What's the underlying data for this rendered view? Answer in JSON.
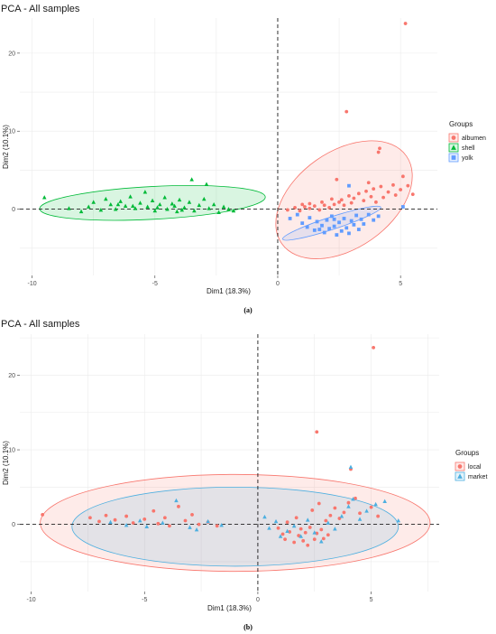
{
  "chart_data": [
    {
      "type": "scatter",
      "title": "PCA - All samples",
      "caption": "(a)",
      "xlabel": "Dim1 (18.3%)",
      "ylabel": "Dim2 (10.1%)",
      "xlim": [
        -10.5,
        6.5
      ],
      "ylim": [
        -8.5,
        24.5
      ],
      "x_ticks": [
        -10,
        -5,
        0,
        5
      ],
      "y_ticks": [
        0,
        10,
        20
      ],
      "grid": true,
      "legend": {
        "title": "Groups",
        "position": "right"
      },
      "series": [
        {
          "name": "albumen",
          "color": "#F8766D",
          "marker": "circle",
          "ellipse": {
            "center": [
              2.7,
              1.2
            ],
            "rx": 3.1,
            "ry": 6.2,
            "angle_deg": -35
          },
          "points": [
            [
              0.4,
              -0.1
            ],
            [
              0.7,
              0.2
            ],
            [
              0.9,
              -0.2
            ],
            [
              1.1,
              0.3
            ],
            [
              1.3,
              0.1
            ],
            [
              1.5,
              0.4
            ],
            [
              1.7,
              -0.1
            ],
            [
              1.9,
              0.5
            ],
            [
              2.1,
              0.2
            ],
            [
              2.3,
              0.6
            ],
            [
              2.5,
              0.9
            ],
            [
              2.6,
              1.2
            ],
            [
              2.7,
              0.5
            ],
            [
              2.9,
              1.7
            ],
            [
              3.0,
              0.8
            ],
            [
              3.1,
              1.4
            ],
            [
              3.3,
              2.0
            ],
            [
              3.5,
              1.1
            ],
            [
              3.6,
              2.3
            ],
            [
              3.8,
              1.6
            ],
            [
              3.9,
              2.6
            ],
            [
              4.0,
              0.9
            ],
            [
              4.2,
              2.9
            ],
            [
              4.3,
              1.5
            ],
            [
              4.5,
              2.2
            ],
            [
              4.7,
              3.1
            ],
            [
              4.8,
              1.8
            ],
            [
              5.0,
              2.5
            ],
            [
              5.1,
              4.2
            ],
            [
              5.3,
              3.0
            ],
            [
              5.5,
              1.9
            ],
            [
              2.2,
              1.3
            ],
            [
              1.8,
              0.9
            ],
            [
              1.3,
              0.7
            ],
            [
              3.7,
              3.4
            ],
            [
              4.1,
              7.3
            ],
            [
              4.15,
              7.8
            ],
            [
              2.8,
              12.5
            ],
            [
              5.2,
              23.8
            ],
            [
              2.4,
              3.8
            ],
            [
              1.0,
              0.6
            ]
          ]
        },
        {
          "name": "shell",
          "color": "#00BA38",
          "marker": "triangle",
          "ellipse": {
            "center": [
              -5.1,
              0.8
            ],
            "rx": 4.6,
            "ry": 2.1,
            "angle_deg": -3
          },
          "points": [
            [
              -9.5,
              1.5
            ],
            [
              -8.5,
              0.1
            ],
            [
              -8.0,
              -0.3
            ],
            [
              -7.7,
              0.3
            ],
            [
              -7.5,
              0.9
            ],
            [
              -7.2,
              -0.1
            ],
            [
              -7.0,
              1.3
            ],
            [
              -6.8,
              0.6
            ],
            [
              -6.6,
              0.0
            ],
            [
              -6.4,
              1.0
            ],
            [
              -6.2,
              0.4
            ],
            [
              -6.0,
              1.6
            ],
            [
              -5.8,
              0.1
            ],
            [
              -5.6,
              0.8
            ],
            [
              -5.4,
              2.2
            ],
            [
              -5.3,
              0.3
            ],
            [
              -5.1,
              1.1
            ],
            [
              -5.0,
              -0.2
            ],
            [
              -4.8,
              0.6
            ],
            [
              -4.6,
              1.5
            ],
            [
              -4.5,
              0.0
            ],
            [
              -4.3,
              0.7
            ],
            [
              -4.1,
              -0.3
            ],
            [
              -4.0,
              1.2
            ],
            [
              -3.8,
              0.2
            ],
            [
              -3.6,
              0.9
            ],
            [
              -3.5,
              3.8
            ],
            [
              -3.4,
              -0.2
            ],
            [
              -3.2,
              0.5
            ],
            [
              -3.0,
              1.3
            ],
            [
              -2.9,
              3.2
            ],
            [
              -2.8,
              0.1
            ],
            [
              -2.6,
              0.6
            ],
            [
              -2.4,
              -0.4
            ],
            [
              -2.2,
              0.3
            ],
            [
              -2.0,
              0.0
            ],
            [
              -1.8,
              -0.2
            ],
            [
              -5.9,
              0.4
            ],
            [
              -4.9,
              0.2
            ],
            [
              -4.2,
              0.4
            ],
            [
              -3.9,
              -0.1
            ],
            [
              -6.5,
              0.6
            ]
          ]
        },
        {
          "name": "yolk",
          "color": "#619CFF",
          "marker": "square",
          "ellipse": {
            "center": [
              2.2,
              -1.8
            ],
            "rx": 2.1,
            "ry": 0.8,
            "angle_deg": -18
          },
          "points": [
            [
              0.5,
              -1.2
            ],
            [
              0.8,
              -0.7
            ],
            [
              1.0,
              -1.8
            ],
            [
              1.2,
              -2.3
            ],
            [
              1.3,
              -1.1
            ],
            [
              1.5,
              -2.7
            ],
            [
              1.6,
              -1.6
            ],
            [
              1.8,
              -2.1
            ],
            [
              1.9,
              -3.0
            ],
            [
              2.0,
              -1.4
            ],
            [
              2.1,
              -2.5
            ],
            [
              2.2,
              -0.9
            ],
            [
              2.3,
              -2.2
            ],
            [
              2.4,
              -3.3
            ],
            [
              2.5,
              -1.7
            ],
            [
              2.6,
              -2.8
            ],
            [
              2.7,
              -1.2
            ],
            [
              2.8,
              -2.4
            ],
            [
              2.9,
              -3.1
            ],
            [
              3.0,
              -1.5
            ],
            [
              3.1,
              -2.0
            ],
            [
              3.2,
              -0.8
            ],
            [
              3.3,
              -2.6
            ],
            [
              3.4,
              -1.3
            ],
            [
              3.5,
              -1.9
            ],
            [
              3.7,
              -0.7
            ],
            [
              3.9,
              -1.4
            ],
            [
              4.1,
              -0.9
            ],
            [
              2.9,
              3.0
            ],
            [
              5.1,
              0.3
            ],
            [
              1.7,
              -2.6
            ],
            [
              2.3,
              -1.3
            ]
          ]
        }
      ]
    },
    {
      "type": "scatter",
      "title": "PCA - All samples",
      "caption": "(b)",
      "xlabel": "Dim1 (18.3%)",
      "ylabel": "Dim2 (10.1%)",
      "xlim": [
        -10.5,
        8.0
      ],
      "ylim": [
        -9.0,
        25.5
      ],
      "x_ticks": [
        -10,
        -5,
        0,
        5
      ],
      "y_ticks": [
        0,
        10,
        20
      ],
      "grid": true,
      "legend": {
        "title": "Groups",
        "position": "right"
      },
      "series": [
        {
          "name": "local",
          "color": "#F8766D",
          "marker": "circle",
          "ellipse": {
            "center": [
              -1.0,
              0.2
            ],
            "rx": 8.6,
            "ry": 6.5,
            "angle_deg": 0
          },
          "points": [
            [
              -9.5,
              1.3
            ],
            [
              -7.4,
              0.9
            ],
            [
              -7.0,
              0.4
            ],
            [
              -6.7,
              1.2
            ],
            [
              -6.3,
              0.6
            ],
            [
              -5.8,
              1.1
            ],
            [
              -5.5,
              0.2
            ],
            [
              -5.0,
              0.7
            ],
            [
              -4.6,
              1.8
            ],
            [
              -4.4,
              0.1
            ],
            [
              -4.1,
              0.9
            ],
            [
              -3.9,
              -0.2
            ],
            [
              -3.5,
              2.4
            ],
            [
              -3.2,
              0.5
            ],
            [
              -2.9,
              1.3
            ],
            [
              -2.6,
              0.0
            ],
            [
              -2.2,
              0.3
            ],
            [
              -1.8,
              -0.2
            ],
            [
              0.9,
              -0.5
            ],
            [
              1.1,
              -1.3
            ],
            [
              1.2,
              -2.0
            ],
            [
              1.4,
              -1.0
            ],
            [
              1.6,
              -2.4
            ],
            [
              1.8,
              -1.5
            ],
            [
              1.9,
              -0.6
            ],
            [
              2.0,
              -2.2
            ],
            [
              2.1,
              -1.1
            ],
            [
              2.2,
              -2.8
            ],
            [
              2.3,
              -0.4
            ],
            [
              2.4,
              1.9
            ],
            [
              2.5,
              -2.0
            ],
            [
              2.6,
              -1.2
            ],
            [
              2.7,
              2.8
            ],
            [
              2.8,
              -0.7
            ],
            [
              2.9,
              -1.9
            ],
            [
              3.0,
              0.5
            ],
            [
              3.1,
              -1.4
            ],
            [
              3.2,
              1.2
            ],
            [
              3.4,
              2.2
            ],
            [
              3.6,
              0.8
            ],
            [
              3.8,
              1.6
            ],
            [
              4.0,
              2.9
            ],
            [
              4.1,
              7.4
            ],
            [
              4.3,
              3.5
            ],
            [
              4.5,
              1.5
            ],
            [
              5.0,
              2.3
            ],
            [
              5.3,
              1.1
            ],
            [
              2.6,
              12.4
            ],
            [
              5.1,
              23.7
            ],
            [
              1.3,
              0.3
            ],
            [
              1.7,
              0.9
            ]
          ]
        },
        {
          "name": "market",
          "color": "#4DAFE0",
          "marker": "triangle",
          "ellipse": {
            "center": [
              -1.0,
              -0.3
            ],
            "rx": 7.2,
            "ry": 5.3,
            "angle_deg": 0
          },
          "points": [
            [
              -6.5,
              0.3
            ],
            [
              -5.8,
              -0.1
            ],
            [
              -5.2,
              0.5
            ],
            [
              -4.9,
              -0.3
            ],
            [
              -4.2,
              0.2
            ],
            [
              -3.6,
              3.2
            ],
            [
              -3.0,
              -0.4
            ],
            [
              -2.7,
              -0.7
            ],
            [
              -2.2,
              0.4
            ],
            [
              -1.6,
              -0.1
            ],
            [
              0.3,
              1.0
            ],
            [
              0.5,
              -0.5
            ],
            [
              0.8,
              0.4
            ],
            [
              1.0,
              -1.6
            ],
            [
              1.3,
              -0.9
            ],
            [
              1.6,
              -0.2
            ],
            [
              1.9,
              -1.6
            ],
            [
              2.2,
              0.6
            ],
            [
              2.5,
              -1.1
            ],
            [
              2.8,
              -2.3
            ],
            [
              3.1,
              0.2
            ],
            [
              3.4,
              -0.6
            ],
            [
              3.7,
              1.1
            ],
            [
              4.0,
              2.4
            ],
            [
              4.2,
              3.4
            ],
            [
              4.5,
              0.7
            ],
            [
              4.8,
              1.8
            ],
            [
              5.2,
              2.7
            ],
            [
              5.6,
              3.1
            ],
            [
              4.1,
              7.7
            ],
            [
              6.2,
              0.5
            ]
          ]
        }
      ]
    }
  ]
}
